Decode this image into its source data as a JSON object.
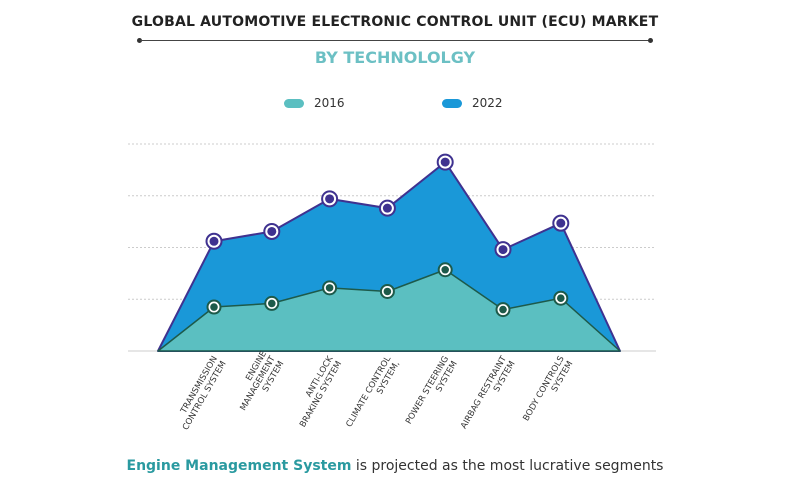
{
  "title": "GLOBAL AUTOMOTIVE ELECTRONIC CONTROL UNIT (ECU) MARKET",
  "subtitle": "BY TECHNOLOLGY",
  "footer": {
    "highlight": "Engine Management System",
    "rest": " is projected as the most lucrative segments"
  },
  "colors": {
    "series_2016": "#5bbfc1",
    "series_2022": "#1a98d8",
    "outline": "#3f3290",
    "marker_2016": "#1d5a4a",
    "grid": "#cccccc"
  },
  "chart_data": {
    "type": "area",
    "title": "GLOBAL AUTOMOTIVE ELECTRONIC CONTROL UNIT (ECU) MARKET",
    "subtitle": "BY TECHNOLOLGY",
    "categories": [
      [
        "TRANSMISSION",
        "CONTROL SYSTEM"
      ],
      [
        "ENGINE",
        "MANAGEMENT",
        "SYSTEM"
      ],
      [
        "ANTI-LOCK",
        "BRAKING SYSTEM"
      ],
      [
        "CLIMATE CONTROL",
        "SYSTEM,"
      ],
      [
        "POWER STEERING",
        "SYSTEM"
      ],
      [
        "AIRBAG RESTRAINT",
        "SYSTEM"
      ],
      [
        "BODY CONTROLS",
        "SYSTEM"
      ]
    ],
    "series": [
      {
        "name": "2016",
        "values": [
          0.85,
          0.92,
          1.22,
          1.15,
          1.57,
          0.8,
          1.02
        ]
      },
      {
        "name": "2022",
        "values": [
          2.12,
          2.31,
          2.94,
          2.76,
          3.65,
          1.96,
          2.47
        ]
      }
    ],
    "ylim": [
      0,
      4
    ],
    "grid": true,
    "legend_position": "top-center",
    "xlabel": "",
    "ylabel": ""
  }
}
